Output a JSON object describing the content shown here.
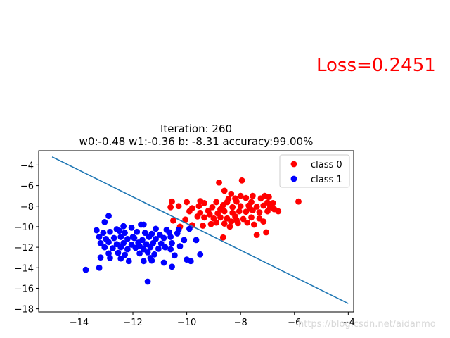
{
  "loss_text": "Loss=0.2451",
  "watermark": "https://blog.csdn.net/aidanmo",
  "chart_data": {
    "type": "scatter",
    "title": "Iteration: 260",
    "subtitle": "w0:-0.48 w1:-0.36 b: -8.31 accuracy:99.00%",
    "xlabel": "",
    "ylabel": "",
    "xlim": [
      -15.5,
      -3.8
    ],
    "ylim": [
      -18.3,
      -2.6
    ],
    "xticks": [
      -14,
      -12,
      -10,
      -8,
      -6,
      -4
    ],
    "yticks": [
      -4,
      -6,
      -8,
      -10,
      -12,
      -14,
      -16,
      -18
    ],
    "grid": false,
    "legend": "upper right",
    "series": [
      {
        "name": "class 0",
        "color": "#ff0000",
        "points": [
          [
            -8.8,
            -5.7
          ],
          [
            -7.95,
            -5.5
          ],
          [
            -8.6,
            -6.5
          ],
          [
            -8.35,
            -6.8
          ],
          [
            -8.0,
            -7.0
          ],
          [
            -7.55,
            -7.0
          ],
          [
            -7.1,
            -7.0
          ],
          [
            -6.95,
            -7.1
          ],
          [
            -8.2,
            -7.25
          ],
          [
            -7.8,
            -7.2
          ],
          [
            -7.25,
            -7.25
          ],
          [
            -9.5,
            -7.5
          ],
          [
            -10.55,
            -7.55
          ],
          [
            -10.0,
            -7.6
          ],
          [
            -9.35,
            -7.7
          ],
          [
            -8.9,
            -7.6
          ],
          [
            -8.5,
            -7.6
          ],
          [
            -8.15,
            -7.55
          ],
          [
            -7.6,
            -7.6
          ],
          [
            -7.0,
            -7.65
          ],
          [
            -6.8,
            -7.7
          ],
          [
            -5.85,
            -7.55
          ],
          [
            -10.6,
            -8.1
          ],
          [
            -10.3,
            -8.0
          ],
          [
            -9.8,
            -8.2
          ],
          [
            -9.55,
            -8.0
          ],
          [
            -9.05,
            -8.1
          ],
          [
            -8.65,
            -7.9
          ],
          [
            -8.3,
            -8.1
          ],
          [
            -8.0,
            -8.0
          ],
          [
            -7.7,
            -7.95
          ],
          [
            -7.4,
            -8.05
          ],
          [
            -7.15,
            -7.95
          ],
          [
            -6.9,
            -8.1
          ],
          [
            -6.6,
            -8.5
          ],
          [
            -9.9,
            -8.5
          ],
          [
            -9.5,
            -8.65
          ],
          [
            -9.2,
            -8.45
          ],
          [
            -8.85,
            -8.7
          ],
          [
            -8.6,
            -8.5
          ],
          [
            -8.3,
            -8.65
          ],
          [
            -8.05,
            -8.5
          ],
          [
            -7.8,
            -8.55
          ],
          [
            -7.55,
            -8.4
          ],
          [
            -7.3,
            -8.6
          ],
          [
            -7.0,
            -8.5
          ],
          [
            -6.75,
            -8.3
          ],
          [
            -10.5,
            -9.4
          ],
          [
            -9.6,
            -9.0
          ],
          [
            -9.35,
            -9.1
          ],
          [
            -9.0,
            -9.2
          ],
          [
            -8.75,
            -9.1
          ],
          [
            -8.5,
            -9.2
          ],
          [
            -8.2,
            -9.0
          ],
          [
            -7.9,
            -9.25
          ],
          [
            -7.6,
            -9.1
          ],
          [
            -7.3,
            -9.2
          ],
          [
            -8.9,
            -9.6
          ],
          [
            -8.6,
            -9.7
          ],
          [
            -8.35,
            -9.5
          ],
          [
            -8.1,
            -9.65
          ],
          [
            -7.75,
            -9.6
          ],
          [
            -7.5,
            -9.8
          ],
          [
            -9.4,
            -9.9
          ],
          [
            -9.1,
            -9.75
          ],
          [
            -7.05,
            -10.55
          ],
          [
            -7.4,
            -10.8
          ],
          [
            -8.65,
            -11.05
          ],
          [
            -10.25,
            -10.0
          ],
          [
            -9.8,
            -9.85
          ],
          [
            -10.05,
            -9.3
          ],
          [
            -8.4,
            -10.0
          ],
          [
            -7.15,
            -9.5
          ],
          [
            -8.75,
            -8.3
          ],
          [
            -8.45,
            -7.3
          ],
          [
            -7.65,
            -8.25
          ],
          [
            -8.15,
            -9.35
          ],
          [
            -9.15,
            -8.8
          ]
        ]
      },
      {
        "name": "class 1",
        "color": "#0000ff",
        "points": [
          [
            -12.9,
            -8.95
          ],
          [
            -13.05,
            -9.55
          ],
          [
            -12.35,
            -9.95
          ],
          [
            -12.05,
            -10.1
          ],
          [
            -11.7,
            -9.8
          ],
          [
            -11.6,
            -9.8
          ],
          [
            -11.15,
            -10.2
          ],
          [
            -10.75,
            -10.3
          ],
          [
            -10.3,
            -10.3
          ],
          [
            -9.9,
            -10.2
          ],
          [
            -13.35,
            -10.35
          ],
          [
            -13.1,
            -10.6
          ],
          [
            -12.85,
            -10.5
          ],
          [
            -12.5,
            -10.4
          ],
          [
            -12.3,
            -10.6
          ],
          [
            -11.85,
            -10.5
          ],
          [
            -11.55,
            -10.6
          ],
          [
            -11.3,
            -10.7
          ],
          [
            -11.0,
            -10.8
          ],
          [
            -10.65,
            -10.55
          ],
          [
            -10.35,
            -10.65
          ],
          [
            -13.25,
            -11.0
          ],
          [
            -13.0,
            -11.2
          ],
          [
            -12.7,
            -11.1
          ],
          [
            -12.45,
            -11.0
          ],
          [
            -12.2,
            -11.2
          ],
          [
            -11.95,
            -11.1
          ],
          [
            -11.65,
            -11.3
          ],
          [
            -11.4,
            -11.0
          ],
          [
            -11.15,
            -11.2
          ],
          [
            -10.85,
            -11.1
          ],
          [
            -10.6,
            -11.0
          ],
          [
            -9.65,
            -11.3
          ],
          [
            -10.1,
            -11.3
          ],
          [
            -13.2,
            -11.6
          ],
          [
            -12.9,
            -11.5
          ],
          [
            -12.6,
            -11.7
          ],
          [
            -12.35,
            -11.6
          ],
          [
            -12.05,
            -11.75
          ],
          [
            -11.8,
            -11.55
          ],
          [
            -11.5,
            -11.7
          ],
          [
            -11.25,
            -11.6
          ],
          [
            -10.95,
            -11.65
          ],
          [
            -10.55,
            -11.6
          ],
          [
            -10.25,
            -11.9
          ],
          [
            -13.05,
            -12.0
          ],
          [
            -12.75,
            -12.1
          ],
          [
            -12.45,
            -12.0
          ],
          [
            -12.2,
            -12.2
          ],
          [
            -11.9,
            -12.05
          ],
          [
            -11.6,
            -12.2
          ],
          [
            -11.35,
            -12.0
          ],
          [
            -11.05,
            -12.15
          ],
          [
            -10.8,
            -12.0
          ],
          [
            -10.6,
            -12.2
          ],
          [
            -12.9,
            -12.6
          ],
          [
            -12.55,
            -12.55
          ],
          [
            -12.3,
            -12.75
          ],
          [
            -11.75,
            -12.6
          ],
          [
            -11.45,
            -12.5
          ],
          [
            -11.2,
            -12.7
          ],
          [
            -13.2,
            -13.0
          ],
          [
            -12.85,
            -13.05
          ],
          [
            -12.45,
            -13.1
          ],
          [
            -12.15,
            -13.35
          ],
          [
            -11.6,
            -13.35
          ],
          [
            -11.35,
            -13.05
          ],
          [
            -10.85,
            -13.5
          ],
          [
            -10.45,
            -12.8
          ],
          [
            -10.0,
            -13.2
          ],
          [
            -9.85,
            -13.35
          ],
          [
            -9.5,
            -12.7
          ],
          [
            -13.75,
            -14.2
          ],
          [
            -13.25,
            -14.0
          ],
          [
            -11.3,
            -13.3
          ],
          [
            -10.55,
            -13.9
          ],
          [
            -11.45,
            -15.35
          ],
          [
            -12.0,
            -11.0
          ],
          [
            -11.75,
            -11.9
          ],
          [
            -12.6,
            -10.25
          ]
        ]
      }
    ],
    "decision_line": {
      "color": "#1f77b4",
      "points": [
        [
          -15.0,
          -3.2
        ],
        [
          -4.0,
          -17.48
        ]
      ]
    }
  }
}
